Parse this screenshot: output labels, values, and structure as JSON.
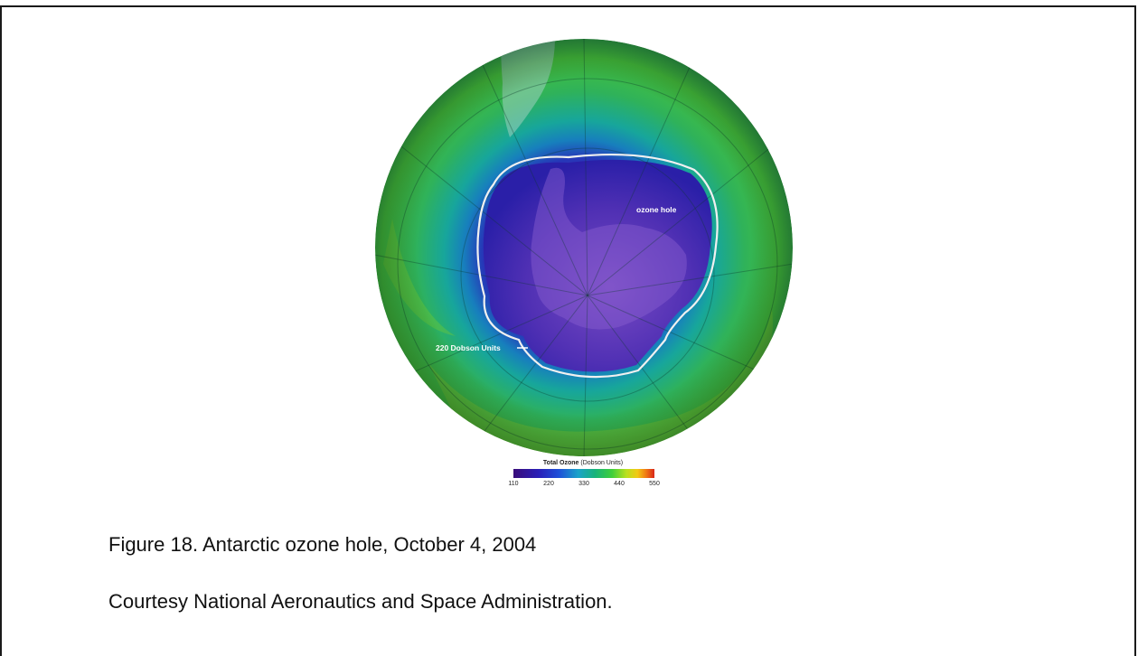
{
  "map": {
    "labels": {
      "ozone_hole": "ozone hole",
      "contour": "220 Dobson Units"
    },
    "colors": {
      "ocean_outer": "#1f7a55",
      "ozone_high": "#4bbd3a",
      "ozone_mid": "#17a69b",
      "ozone_low": "#2a2fb0",
      "ozone_hole": "#5a3aa8",
      "contour_line": "#f0f0f0",
      "land_mask": "#9fcfc0"
    }
  },
  "legend": {
    "title_bold": "Total Ozone",
    "title_rest": "(Dobson Units)",
    "ticks": [
      "110",
      "220",
      "330",
      "440",
      "550"
    ]
  },
  "caption": {
    "figure": "Figure 18. Antarctic ozone hole, October 4, 2004",
    "credit": "Courtesy National Aeronautics and Space Administration."
  }
}
